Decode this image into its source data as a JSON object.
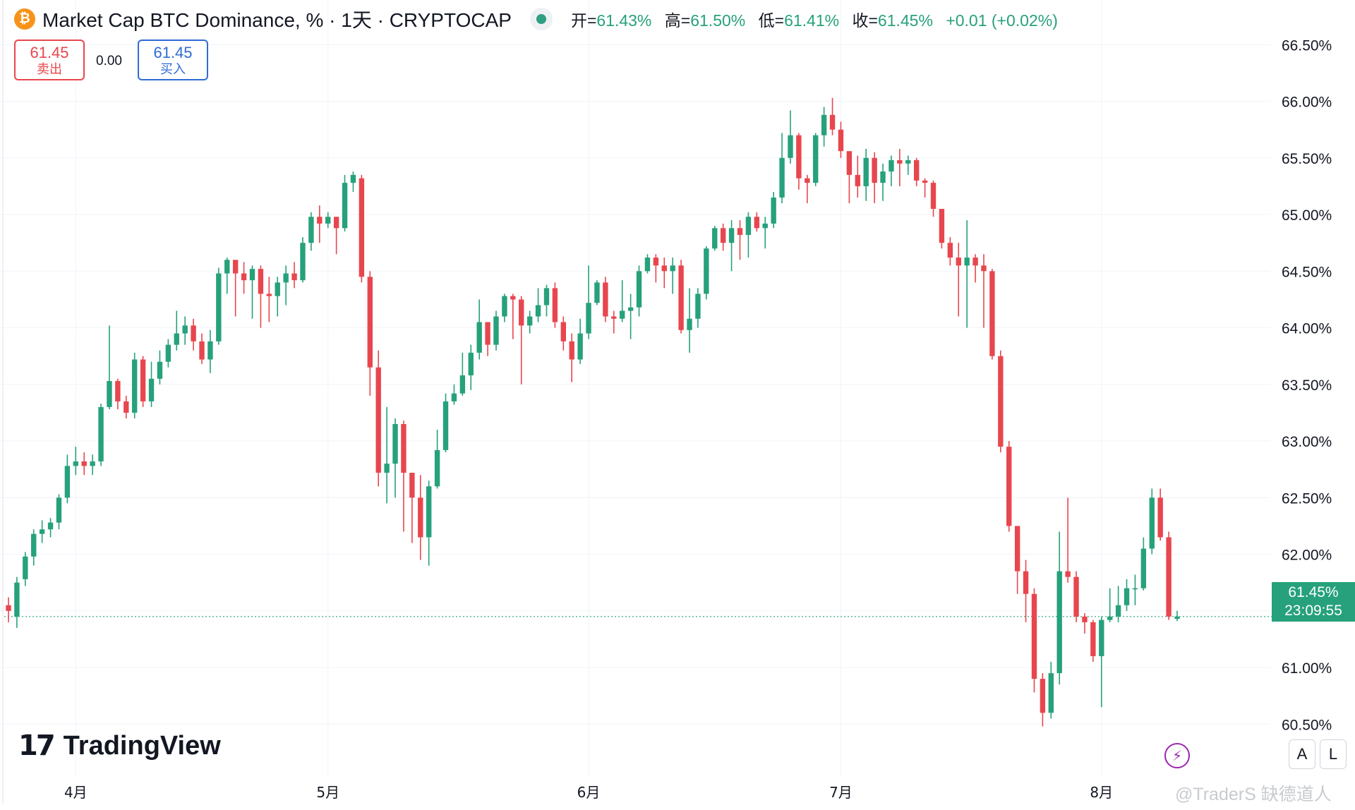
{
  "header": {
    "coin_icon": "bitcoin-icon",
    "coin_glyph": "₿",
    "title": "Market Cap BTC Dominance, % · 1天 · CRYPTOCAP",
    "open_label": "开=",
    "open_value": "61.43%",
    "high_label": "高=",
    "high_value": "61.50%",
    "low_label": "低=",
    "low_value": "61.41%",
    "close_label": "收=",
    "close_value": "61.45%",
    "change": "+0.01 (+0.02%)"
  },
  "trade": {
    "sell_price": "61.45",
    "sell_label": "卖出",
    "spread": "0.00",
    "buy_price": "61.45",
    "buy_label": "买入"
  },
  "price_label": {
    "value": "61.45%",
    "countdown": "23:09:55"
  },
  "brand": {
    "logo_mark": "17",
    "name": "TradingView"
  },
  "buttons": {
    "auto": "A",
    "log": "L",
    "bolt_icon": "lightning-icon",
    "bolt_glyph": "⚡"
  },
  "watermark": "@TraderS 缺德道人",
  "colors": {
    "up": "#26a17b",
    "down": "#e8464e",
    "grid": "#f0f3fa",
    "text": "#131722"
  },
  "chart_data": {
    "type": "candlestick",
    "title": "Market Cap BTC Dominance, % · 1天 · CRYPTOCAP",
    "interval": "1天",
    "ylim": [
      60.3,
      66.7
    ],
    "y_ticks": [
      "60.50%",
      "61.00%",
      "61.50%",
      "62.00%",
      "62.50%",
      "63.00%",
      "63.50%",
      "64.00%",
      "64.50%",
      "65.00%",
      "65.50%",
      "66.00%",
      "66.50%"
    ],
    "y_tick_values": [
      60.5,
      61.0,
      61.5,
      62.0,
      62.5,
      63.0,
      63.5,
      64.0,
      64.5,
      65.0,
      65.5,
      66.0,
      66.5
    ],
    "x_ticks": [
      {
        "label": "4月",
        "index": 8
      },
      {
        "label": "5月",
        "index": 38
      },
      {
        "label": "6月",
        "index": 69
      },
      {
        "label": "7月",
        "index": 99
      },
      {
        "label": "8月",
        "index": 130
      }
    ],
    "grid": true,
    "last_price": 61.45,
    "candles": [
      [
        61.55,
        61.5,
        61.62,
        61.4
      ],
      [
        61.45,
        61.75,
        61.8,
        61.35
      ],
      [
        61.78,
        61.98,
        62.02,
        61.72
      ],
      [
        61.98,
        62.18,
        62.22,
        61.9
      ],
      [
        62.18,
        62.22,
        62.3,
        62.1
      ],
      [
        62.22,
        62.28,
        62.32,
        62.15
      ],
      [
        62.28,
        62.5,
        62.53,
        62.22
      ],
      [
        62.5,
        62.78,
        62.88,
        62.45
      ],
      [
        62.78,
        62.82,
        62.95,
        62.7
      ],
      [
        62.82,
        62.78,
        62.9,
        62.7
      ],
      [
        62.78,
        62.82,
        62.88,
        62.7
      ],
      [
        62.82,
        63.3,
        63.33,
        62.78
      ],
      [
        63.3,
        63.53,
        64.02,
        63.28
      ],
      [
        63.53,
        63.35,
        63.55,
        63.28
      ],
      [
        63.35,
        63.25,
        63.4,
        63.2
      ],
      [
        63.25,
        63.72,
        63.78,
        63.2
      ],
      [
        63.72,
        63.35,
        63.75,
        63.3
      ],
      [
        63.35,
        63.55,
        63.7,
        63.3
      ],
      [
        63.55,
        63.7,
        63.8,
        63.5
      ],
      [
        63.7,
        63.85,
        63.9,
        63.65
      ],
      [
        63.85,
        63.95,
        64.15,
        63.8
      ],
      [
        63.95,
        64.02,
        64.1,
        63.85
      ],
      [
        64.02,
        63.88,
        64.08,
        63.8
      ],
      [
        63.88,
        63.72,
        63.95,
        63.68
      ],
      [
        63.72,
        63.88,
        63.98,
        63.6
      ],
      [
        63.88,
        64.48,
        64.53,
        63.85
      ],
      [
        64.48,
        64.6,
        64.62,
        64.3
      ],
      [
        64.6,
        64.48,
        64.55,
        64.1
      ],
      [
        64.48,
        64.42,
        64.58,
        64.3
      ],
      [
        64.42,
        64.52,
        64.55,
        64.08
      ],
      [
        64.52,
        64.3,
        64.55,
        64.0
      ],
      [
        64.3,
        64.28,
        64.45,
        64.05
      ],
      [
        64.28,
        64.4,
        64.45,
        64.1
      ],
      [
        64.4,
        64.48,
        64.55,
        64.2
      ],
      [
        64.48,
        64.42,
        64.58,
        64.35
      ],
      [
        64.42,
        64.75,
        64.8,
        64.4
      ],
      [
        64.75,
        64.98,
        65.02,
        64.68
      ],
      [
        64.98,
        64.92,
        65.08,
        64.75
      ],
      [
        64.92,
        64.98,
        65.02,
        64.88
      ],
      [
        64.98,
        64.88,
        64.95,
        64.65
      ],
      [
        64.88,
        65.28,
        65.35,
        64.85
      ],
      [
        65.28,
        65.35,
        65.38,
        65.2
      ],
      [
        65.32,
        64.45,
        65.35,
        64.4
      ],
      [
        64.45,
        63.65,
        64.5,
        63.4
      ],
      [
        63.65,
        62.72,
        63.8,
        62.6
      ],
      [
        62.72,
        62.8,
        63.3,
        62.45
      ],
      [
        62.8,
        63.15,
        63.2,
        62.5
      ],
      [
        63.15,
        62.72,
        63.18,
        62.2
      ],
      [
        62.72,
        62.5,
        62.72,
        62.1
      ],
      [
        62.5,
        62.15,
        62.7,
        61.95
      ],
      [
        62.15,
        62.6,
        62.65,
        61.9
      ],
      [
        62.6,
        62.92,
        63.1,
        62.58
      ],
      [
        62.92,
        63.35,
        63.42,
        62.9
      ],
      [
        63.35,
        63.42,
        63.5,
        63.32
      ],
      [
        63.42,
        63.58,
        63.78,
        63.4
      ],
      [
        63.58,
        63.78,
        63.85,
        63.45
      ],
      [
        63.78,
        64.05,
        64.25,
        63.72
      ],
      [
        64.05,
        63.85,
        63.92,
        63.75
      ],
      [
        63.85,
        64.1,
        64.15,
        63.8
      ],
      [
        64.1,
        64.28,
        64.3,
        64.05
      ],
      [
        64.28,
        64.25,
        64.3,
        63.9
      ],
      [
        64.25,
        64.02,
        64.28,
        63.5
      ],
      [
        64.02,
        64.1,
        64.15,
        63.95
      ],
      [
        64.1,
        64.2,
        64.35,
        64.05
      ],
      [
        64.2,
        64.35,
        64.38,
        64.1
      ],
      [
        64.35,
        64.05,
        64.4,
        64.0
      ],
      [
        64.05,
        63.88,
        64.1,
        63.8
      ],
      [
        63.88,
        63.72,
        63.95,
        63.52
      ],
      [
        63.72,
        63.95,
        64.08,
        63.68
      ],
      [
        63.95,
        64.22,
        64.55,
        63.9
      ],
      [
        64.22,
        64.4,
        64.42,
        64.2
      ],
      [
        64.4,
        64.1,
        64.45,
        64.05
      ],
      [
        64.1,
        64.08,
        64.15,
        63.95
      ],
      [
        64.08,
        64.15,
        64.42,
        64.05
      ],
      [
        64.15,
        64.18,
        64.3,
        63.9
      ],
      [
        64.18,
        64.5,
        64.55,
        64.1
      ],
      [
        64.5,
        64.62,
        64.65,
        64.48
      ],
      [
        64.62,
        64.55,
        64.65,
        64.4
      ],
      [
        64.55,
        64.5,
        64.62,
        64.35
      ],
      [
        64.5,
        64.55,
        64.62,
        64.3
      ],
      [
        64.55,
        63.98,
        64.6,
        63.95
      ],
      [
        63.98,
        64.08,
        64.35,
        63.78
      ],
      [
        64.08,
        64.3,
        64.35,
        64.0
      ],
      [
        64.3,
        64.7,
        64.72,
        64.25
      ],
      [
        64.7,
        64.88,
        64.9,
        64.68
      ],
      [
        64.88,
        64.75,
        64.92,
        64.68
      ],
      [
        64.75,
        64.88,
        64.95,
        64.5
      ],
      [
        64.88,
        64.82,
        64.95,
        64.6
      ],
      [
        64.82,
        64.98,
        65.02,
        64.62
      ],
      [
        64.98,
        64.88,
        65.02,
        64.85
      ],
      [
        64.88,
        64.92,
        64.98,
        64.7
      ],
      [
        64.92,
        65.15,
        65.2,
        64.88
      ],
      [
        65.15,
        65.5,
        65.72,
        65.1
      ],
      [
        65.5,
        65.7,
        65.92,
        65.45
      ],
      [
        65.7,
        65.32,
        65.72,
        65.22
      ],
      [
        65.32,
        65.28,
        65.35,
        65.1
      ],
      [
        65.28,
        65.7,
        65.72,
        65.25
      ],
      [
        65.7,
        65.88,
        65.95,
        65.6
      ],
      [
        65.88,
        65.75,
        66.03,
        65.7
      ],
      [
        65.75,
        65.56,
        65.82,
        65.5
      ],
      [
        65.56,
        65.35,
        65.55,
        65.1
      ],
      [
        65.35,
        65.25,
        65.52,
        65.15
      ],
      [
        65.25,
        65.5,
        65.58,
        65.12
      ],
      [
        65.5,
        65.28,
        65.55,
        65.1
      ],
      [
        65.28,
        65.38,
        65.45,
        65.12
      ],
      [
        65.38,
        65.48,
        65.52,
        65.25
      ],
      [
        65.48,
        65.45,
        65.58,
        65.25
      ],
      [
        65.45,
        65.48,
        65.52,
        65.35
      ],
      [
        65.48,
        65.3,
        65.5,
        65.25
      ],
      [
        65.3,
        65.28,
        65.32,
        65.15
      ],
      [
        65.28,
        65.05,
        65.3,
        64.98
      ],
      [
        65.05,
        64.75,
        65.05,
        64.7
      ],
      [
        64.75,
        64.62,
        64.8,
        64.55
      ],
      [
        64.62,
        64.55,
        64.75,
        64.1
      ],
      [
        64.55,
        64.62,
        64.95,
        64.0
      ],
      [
        64.62,
        64.55,
        64.65,
        64.4
      ],
      [
        64.55,
        64.5,
        64.65,
        64.0
      ],
      [
        64.5,
        63.75,
        64.52,
        63.72
      ],
      [
        63.75,
        62.95,
        63.8,
        62.9
      ],
      [
        62.95,
        62.25,
        63.0,
        62.2
      ],
      [
        62.25,
        61.85,
        62.25,
        61.65
      ],
      [
        61.85,
        61.65,
        61.95,
        61.4
      ],
      [
        61.65,
        60.9,
        61.7,
        60.78
      ],
      [
        60.9,
        60.6,
        60.95,
        60.48
      ],
      [
        60.6,
        60.95,
        61.05,
        60.55
      ],
      [
        60.95,
        61.85,
        62.2,
        60.85
      ],
      [
        61.85,
        61.8,
        62.5,
        61.75
      ],
      [
        61.8,
        61.45,
        61.85,
        61.4
      ],
      [
        61.45,
        61.4,
        61.48,
        61.3
      ],
      [
        61.4,
        61.1,
        61.42,
        61.05
      ],
      [
        61.1,
        61.42,
        61.45,
        60.65
      ],
      [
        61.42,
        61.45,
        61.7,
        61.4
      ],
      [
        61.45,
        61.55,
        61.72,
        61.4
      ],
      [
        61.55,
        61.7,
        61.78,
        61.5
      ],
      [
        61.7,
        61.7,
        61.82,
        61.55
      ],
      [
        61.7,
        62.05,
        62.15,
        61.68
      ],
      [
        62.05,
        62.5,
        62.58,
        62.0
      ],
      [
        62.5,
        62.15,
        62.58,
        62.12
      ],
      [
        62.15,
        61.45,
        62.2,
        61.42
      ],
      [
        61.43,
        61.45,
        61.5,
        61.41
      ]
    ]
  }
}
